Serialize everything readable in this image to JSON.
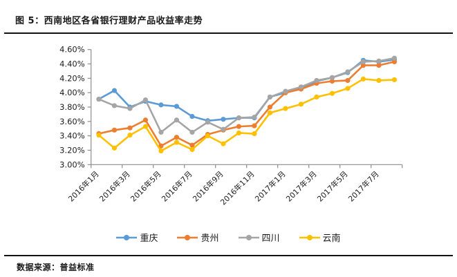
{
  "title": "图 5：西南地区各省银行理财产品收益率走势",
  "footer": {
    "source_label": "数据来源：普益标准"
  },
  "colors": {
    "chongqing_blue": "#5B9BD5",
    "guizhou_orange": "#ED7D31",
    "sichuan_gray": "#A5A5A5",
    "yunnan_yellow": "#FFC000",
    "axis_line": "#8C8C8C",
    "axis_text": "#1f1f1f",
    "rule_line": "#111111"
  },
  "chart_data": {
    "type": "line",
    "title": "西南地区各省银行理财产品收益率走势",
    "x": [
      "2016年1月",
      "2016年2月",
      "2016年3月",
      "2016年4月",
      "2016年5月",
      "2016年6月",
      "2016年7月",
      "2016年8月",
      "2016年9月",
      "2016年10月",
      "2016年11月",
      "2016年12月",
      "2017年1月",
      "2017年2月",
      "2017年3月",
      "2017年4月",
      "2017年5月",
      "2017年6月",
      "2017年7月",
      "2017年8月"
    ],
    "x_tick_labels": [
      "2016年1月",
      "2016年3月",
      "2016年5月",
      "2016年7月",
      "2016年9月",
      "2016年11月",
      "2017年1月",
      "2017年3月",
      "2017年5月",
      "2017年7月"
    ],
    "y_tick_labels": [
      "4.60%",
      "4.40%",
      "4.20%",
      "4.00%",
      "3.80%",
      "3.60%",
      "3.40%",
      "3.20%",
      "3.00%"
    ],
    "ylim": [
      3.0,
      4.6
    ],
    "y_step": 0.2,
    "grid": "off",
    "legend_position": "bottom",
    "marker": "circle",
    "series": [
      {
        "name": "重庆",
        "color": "#5B9BD5",
        "values": [
          3.91,
          4.03,
          3.8,
          3.88,
          3.83,
          3.81,
          3.67,
          3.61,
          3.63,
          3.65,
          3.65,
          3.94,
          4.0,
          4.06,
          4.16,
          4.21,
          4.28,
          4.45,
          4.43,
          4.46
        ]
      },
      {
        "name": "贵州",
        "color": "#ED7D31",
        "values": [
          3.43,
          3.48,
          3.51,
          3.62,
          3.26,
          3.38,
          3.27,
          3.42,
          3.48,
          3.53,
          3.54,
          3.8,
          4.0,
          4.05,
          4.13,
          4.16,
          4.17,
          4.38,
          4.38,
          4.43
        ]
      },
      {
        "name": "四川",
        "color": "#A5A5A5",
        "values": [
          3.91,
          3.82,
          3.78,
          3.9,
          3.45,
          3.62,
          3.45,
          3.59,
          3.49,
          3.65,
          3.66,
          3.94,
          4.02,
          4.08,
          4.17,
          4.21,
          4.29,
          4.43,
          4.44,
          4.48
        ]
      },
      {
        "name": "云南",
        "color": "#FFC000",
        "values": [
          3.41,
          3.23,
          3.41,
          3.53,
          3.19,
          3.31,
          3.21,
          3.4,
          3.29,
          3.44,
          3.43,
          3.72,
          3.78,
          3.84,
          3.94,
          3.99,
          4.06,
          4.19,
          4.17,
          4.18
        ]
      }
    ]
  }
}
